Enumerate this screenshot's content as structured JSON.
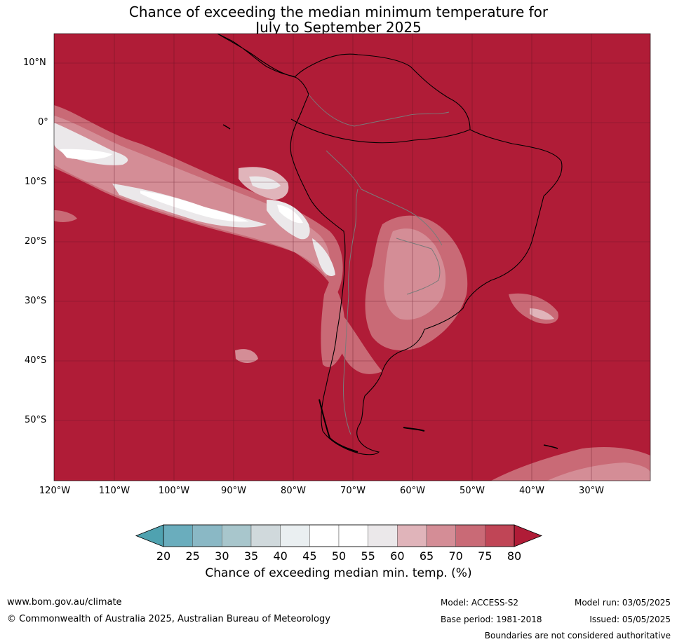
{
  "title": {
    "line1": "Chance of exceeding the median minimum temperature for",
    "line2": "July to September 2025"
  },
  "map": {
    "background_color": "#b01c37",
    "lat_labels": [
      "10°N",
      "0°",
      "10°S",
      "20°S",
      "30°S",
      "40°S",
      "50°S"
    ],
    "lon_labels": [
      "120°W",
      "110°W",
      "100°W",
      "90°W",
      "80°W",
      "70°W",
      "60°W",
      "50°W",
      "40°W",
      "30°W"
    ]
  },
  "colorbar": {
    "ticks": [
      "20",
      "25",
      "30",
      "35",
      "40",
      "45",
      "50",
      "55",
      "60",
      "65",
      "70",
      "75",
      "80"
    ],
    "colors": [
      "#4fa2b0",
      "#6aadbd",
      "#8ab8c5",
      "#a8c6cc",
      "#d0d9dc",
      "#eaeff1",
      "#ffffff",
      "#ffffff",
      "#ebe8ea",
      "#e0b4ba",
      "#d48d96",
      "#c96a76",
      "#c04556",
      "#b01c37"
    ],
    "label": "Chance of exceeding median min. temp. (%)"
  },
  "footer": {
    "website": "www.bom.gov.au/climate",
    "copyright": "© Commonwealth of Australia 2025, Australian Bureau of Meteorology",
    "model": "Model: ACCESS-S2",
    "base_period": "Base period: 1981-2018",
    "model_run": "Model run: 03/05/2025",
    "issued": "Issued: 05/05/2025",
    "disclaimer": "Boundaries are not considered authoritative"
  }
}
